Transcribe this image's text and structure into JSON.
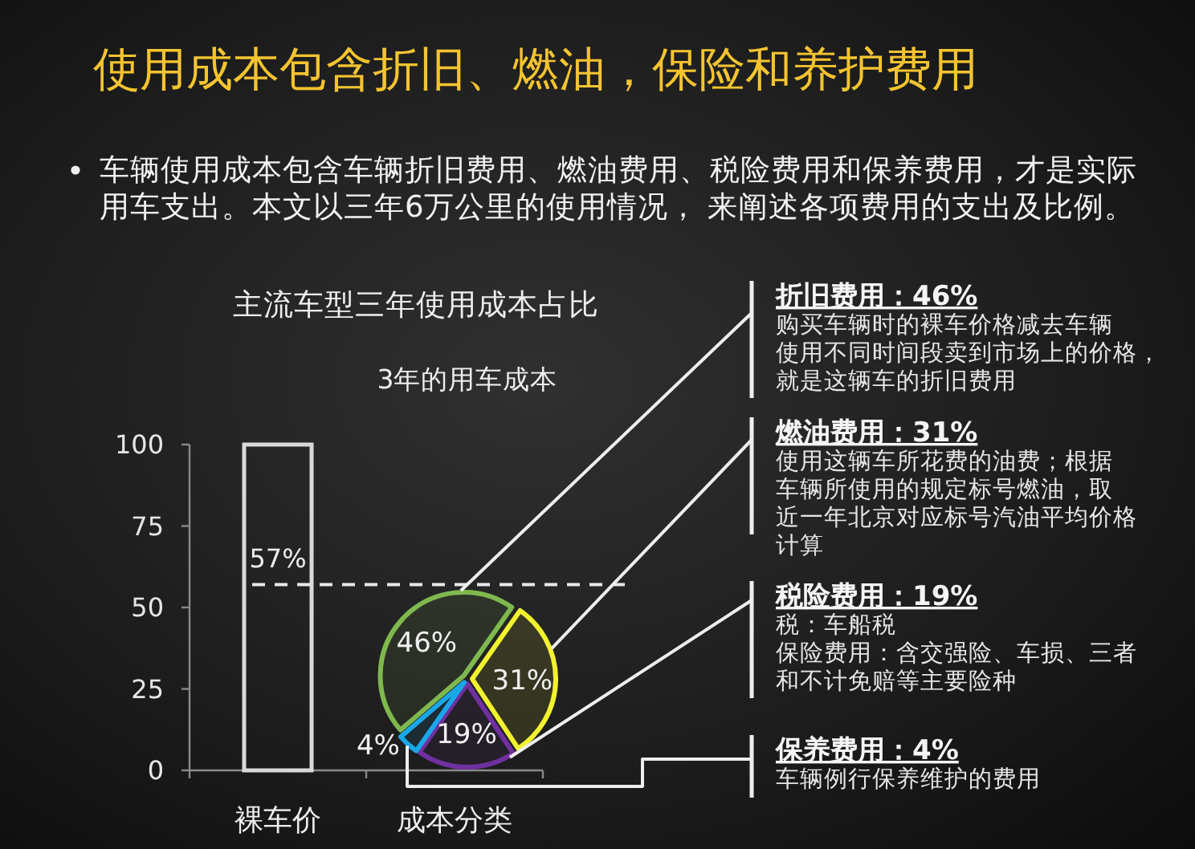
{
  "chart_data": [
    {
      "type": "other",
      "title": "使用成本包含折旧、燃油，保险和养护费用",
      "annotations": [
        "车辆使用成本包含车辆折旧费用、燃油费用、税险费用和保养费用，才是实际用车支出。本文以三年6万公里的使用情况， 来阐述各项费用的支出及比例。"
      ]
    },
    {
      "type": "bar",
      "title": "主流车型三年使用成本占比",
      "subtitle": "3年的用车成本",
      "categories": [
        "裸车价",
        "成本分类"
      ],
      "values": [
        100,
        null
      ],
      "color": "#d9d9d9",
      "ylim": [
        0,
        100
      ],
      "yticks": [
        0,
        25,
        50,
        75,
        100
      ],
      "ref_lines": [
        {
          "axis": "y",
          "value": 57,
          "label": "57%",
          "color": "#e8e8e8",
          "line_style": "dashed"
        }
      ]
    },
    {
      "type": "pie",
      "categories": [
        "折旧费用：46%",
        "燃油费用：31%",
        "税险费用：19%",
        "保养费用：4%"
      ],
      "values": [
        46,
        31,
        19,
        4
      ],
      "colors": [
        "#7fb84e",
        "#f2f230",
        "#7030a0",
        "#1aa7e8"
      ],
      "value_labels": [
        "46%",
        "31%",
        "19%",
        "4%"
      ],
      "annotations": [
        "购买车辆时的裸车价格减去车辆使用不同时间段卖到市场上的价格，就是这辆车的折旧费用",
        "使用这辆车所花费的油费；根据车辆所使用的规定标号燃油，取近一年北京对应标号汽油平均价格计算",
        "税：车船税",
        "保险费用：含交强险、车损、三者和不计免赔等主要险种",
        "车辆例行保养维护的费用"
      ]
    }
  ]
}
